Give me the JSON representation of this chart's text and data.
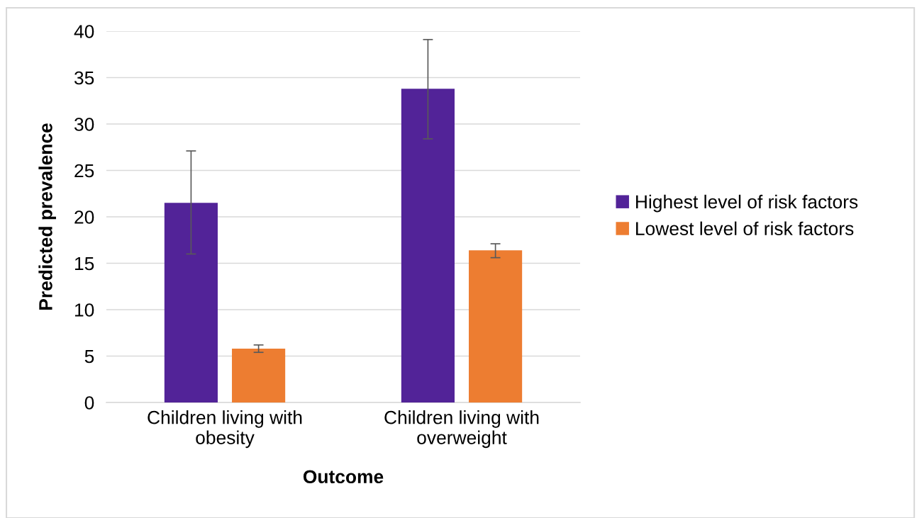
{
  "chart_data": {
    "type": "bar",
    "xlabel": "Outcome",
    "ylabel": "Predicted prevalence",
    "categories": [
      "Children living with\nobesity",
      "Children living with\noverweight"
    ],
    "series": [
      {
        "name": "Highest level of risk factors",
        "color": "#522398",
        "values": [
          21.5,
          33.8
        ],
        "errors": [
          [
            16.0,
            27.1
          ],
          [
            28.4,
            39.1
          ]
        ]
      },
      {
        "name": "Lowest level of risk factors",
        "color": "#ed7d31",
        "values": [
          5.8,
          16.4
        ],
        "errors": [
          [
            5.4,
            6.2
          ],
          [
            15.6,
            17.1
          ]
        ]
      }
    ],
    "ylim": [
      0,
      40
    ],
    "yticks": [
      0,
      5,
      10,
      15,
      20,
      25,
      30,
      35,
      40
    ],
    "grid": "y",
    "legend": "right"
  }
}
